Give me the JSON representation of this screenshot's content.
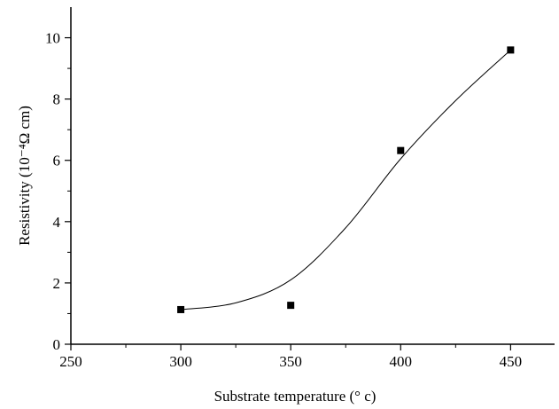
{
  "chart_data": {
    "type": "scatter",
    "title": "",
    "xlabel": "Substrate temperature",
    "xlabel_unit": "(° c)",
    "ylabel": "Resistivity",
    "ylabel_unit": "(10⁻⁴Ω cm)",
    "xlim": [
      250,
      470
    ],
    "ylim": [
      0,
      11
    ],
    "xticks": [
      250,
      300,
      350,
      400,
      450
    ],
    "xtick_labels": [
      "250",
      "300",
      "350",
      "400",
      "450"
    ],
    "yticks": [
      0,
      2,
      4,
      6,
      8,
      10
    ],
    "ytick_labels": [
      "0",
      "2",
      "4",
      "6",
      "8",
      "10"
    ],
    "grid": false,
    "legend": "none",
    "series": [
      {
        "marker": "square",
        "color": "#000000",
        "x": [
          300,
          350,
          400,
          450
        ],
        "y": [
          1.13,
          1.27,
          6.32,
          9.6
        ]
      }
    ],
    "fit_curve": {
      "style": "smooth line",
      "color": "#000000",
      "x": [
        300,
        325,
        350,
        375,
        400,
        425,
        450
      ],
      "y": [
        1.13,
        1.35,
        2.1,
        3.8,
        6.05,
        7.95,
        9.6
      ]
    }
  }
}
